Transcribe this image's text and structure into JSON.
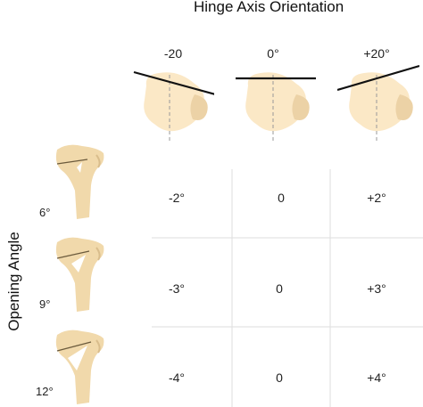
{
  "title": "Hinge Axis Orientation",
  "side_label": "Opening Angle",
  "columns": [
    "-20",
    "0°",
    "+20°"
  ],
  "rows": [
    {
      "label": "6°",
      "values": [
        "-2°",
        "0",
        "+2°"
      ]
    },
    {
      "label": "9°",
      "values": [
        "-3°",
        "0",
        "+3°"
      ]
    },
    {
      "label": "12°",
      "values": [
        "-4°",
        "0",
        "+4°"
      ]
    }
  ],
  "colors": {
    "bone_fill": "#fbe8c6",
    "bone_shade": "#ecd2a6",
    "model_fill": "#f1d9ab",
    "line": "#111111",
    "grid": "#dedede"
  }
}
